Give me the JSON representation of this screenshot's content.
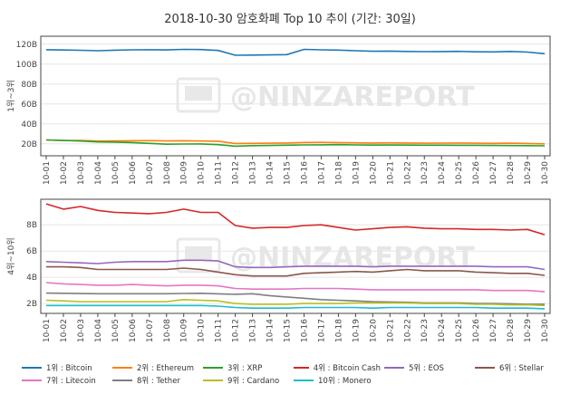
{
  "title": "2018-10-30 암호화폐 Top 10 추이 (기간: 30일)",
  "watermark": "@NINZAREPORT",
  "chart_data": [
    {
      "type": "line",
      "ylabel": "1위~3위",
      "ylim": [
        8,
        128
      ],
      "yticks": [
        20,
        40,
        60,
        80,
        100,
        120
      ],
      "ytick_labels": [
        "20B",
        "40B",
        "60B",
        "80B",
        "100B",
        "120B"
      ],
      "x": [
        "10-01",
        "10-02",
        "10-03",
        "10-04",
        "10-05",
        "10-06",
        "10-07",
        "10-08",
        "10-09",
        "10-10",
        "10-11",
        "10-12",
        "10-13",
        "10-14",
        "10-15",
        "10-16",
        "10-17",
        "10-18",
        "10-19",
        "10-20",
        "10-21",
        "10-22",
        "10-23",
        "10-24",
        "10-25",
        "10-26",
        "10-27",
        "10-28",
        "10-29",
        "10-30"
      ],
      "series": [
        {
          "name": "1위 : Bitcoin",
          "color": "#1f77b4",
          "values": [
            114.5,
            114.2,
            113.9,
            113.5,
            114,
            114.4,
            114.5,
            114.3,
            114.8,
            114.6,
            113.7,
            108.9,
            109.1,
            109.3,
            109.5,
            114.8,
            114.4,
            114.1,
            113.5,
            112.9,
            113.1,
            112.7,
            112.5,
            112.6,
            112.8,
            112.4,
            112.3,
            112.7,
            112.1,
            110.5
          ]
        },
        {
          "name": "2위 : Ethereum",
          "color": "#ff7f0e",
          "values": [
            23.9,
            23.3,
            23.4,
            22.8,
            22.9,
            23.1,
            23.2,
            22.9,
            23.1,
            22.8,
            22.6,
            20.4,
            20.5,
            20.6,
            20.8,
            21.4,
            21.5,
            21.3,
            21,
            20.8,
            21,
            20.8,
            20.6,
            20.7,
            20.8,
            20.6,
            20.5,
            20.6,
            20.4,
            20
          ]
        },
        {
          "name": "3위 : XRP",
          "color": "#2ca02c",
          "values": [
            23.9,
            23.4,
            22.8,
            21.9,
            21.7,
            21.3,
            20.5,
            19.6,
            19.8,
            19.9,
            19.2,
            17.6,
            18.2,
            18.4,
            18.6,
            18.9,
            19,
            19.2,
            18.9,
            18.7,
            18.8,
            18.7,
            18.6,
            18.6,
            18.5,
            18.5,
            18.4,
            18.3,
            18.2,
            18
          ]
        }
      ]
    },
    {
      "type": "line",
      "ylabel": "4위~10위",
      "ylim": [
        1.25,
        9.95
      ],
      "yticks": [
        2,
        4,
        6,
        8
      ],
      "ytick_labels": [
        "2B",
        "4B",
        "6B",
        "8B"
      ],
      "x": [
        "10-01",
        "10-02",
        "10-03",
        "10-04",
        "10-05",
        "10-06",
        "10-07",
        "10-08",
        "10-09",
        "10-10",
        "10-11",
        "10-12",
        "10-13",
        "10-14",
        "10-15",
        "10-16",
        "10-17",
        "10-18",
        "10-19",
        "10-20",
        "10-21",
        "10-22",
        "10-23",
        "10-24",
        "10-25",
        "10-26",
        "10-27",
        "10-28",
        "10-29",
        "10-30"
      ],
      "series": [
        {
          "name": "4위 : Bitcoin Cash",
          "color": "#d62728",
          "values": [
            9.6,
            9.2,
            9.4,
            9.1,
            8.95,
            8.9,
            8.85,
            8.95,
            9.2,
            8.95,
            8.95,
            7.95,
            7.75,
            7.8,
            7.8,
            7.95,
            8.0,
            7.8,
            7.6,
            7.7,
            7.8,
            7.85,
            7.75,
            7.7,
            7.7,
            7.65,
            7.65,
            7.6,
            7.65,
            7.25
          ]
        },
        {
          "name": "5위 : EOS",
          "color": "#9467bd",
          "values": [
            5.2,
            5.15,
            5.1,
            5.05,
            5.15,
            5.2,
            5.2,
            5.2,
            5.3,
            5.3,
            5.25,
            4.8,
            4.75,
            4.75,
            4.8,
            4.85,
            4.85,
            4.85,
            4.85,
            4.8,
            4.85,
            4.85,
            4.85,
            4.85,
            4.85,
            4.85,
            4.8,
            4.8,
            4.8,
            4.6
          ]
        },
        {
          "name": "6위 : Stellar",
          "color": "#8c564b",
          "values": [
            4.8,
            4.8,
            4.75,
            4.6,
            4.6,
            4.6,
            4.6,
            4.6,
            4.7,
            4.6,
            4.4,
            4.2,
            4.1,
            4.1,
            4.1,
            4.3,
            4.35,
            4.4,
            4.45,
            4.4,
            4.5,
            4.6,
            4.5,
            4.5,
            4.5,
            4.4,
            4.35,
            4.3,
            4.3,
            4.15
          ]
        },
        {
          "name": "7위 : Litecoin",
          "color": "#e377c2",
          "values": [
            3.6,
            3.5,
            3.45,
            3.4,
            3.4,
            3.45,
            3.4,
            3.35,
            3.4,
            3.4,
            3.35,
            3.15,
            3.1,
            3.1,
            3.1,
            3.15,
            3.15,
            3.15,
            3.1,
            3.05,
            3.05,
            3.05,
            3.05,
            3.05,
            3.05,
            3.05,
            3.0,
            3.0,
            3.0,
            2.9
          ]
        },
        {
          "name": "8위 : Tether",
          "color": "#7f7f7f",
          "values": [
            2.8,
            2.78,
            2.76,
            2.75,
            2.75,
            2.75,
            2.75,
            2.75,
            2.77,
            2.78,
            2.74,
            2.71,
            2.75,
            2.6,
            2.5,
            2.4,
            2.3,
            2.25,
            2.2,
            2.15,
            2.12,
            2.1,
            2.05,
            2.05,
            2.05,
            2.0,
            2.0,
            1.98,
            1.95,
            1.95
          ]
        },
        {
          "name": "9위 : Cardano",
          "color": "#bcbd22",
          "values": [
            2.25,
            2.2,
            2.15,
            2.15,
            2.15,
            2.15,
            2.15,
            2.15,
            2.3,
            2.25,
            2.2,
            2.0,
            1.95,
            1.95,
            1.95,
            2.0,
            2.0,
            2.0,
            2.05,
            2.05,
            2.05,
            2.05,
            2.0,
            2.0,
            2.0,
            1.95,
            1.95,
            1.9,
            1.9,
            1.85
          ]
        },
        {
          "name": "10위 : Monero",
          "color": "#17becf",
          "values": [
            1.85,
            1.85,
            1.85,
            1.85,
            1.85,
            1.85,
            1.85,
            1.85,
            1.85,
            1.85,
            1.8,
            1.7,
            1.65,
            1.65,
            1.65,
            1.7,
            1.7,
            1.7,
            1.7,
            1.65,
            1.7,
            1.7,
            1.7,
            1.7,
            1.7,
            1.7,
            1.65,
            1.65,
            1.65,
            1.6
          ]
        }
      ]
    }
  ]
}
